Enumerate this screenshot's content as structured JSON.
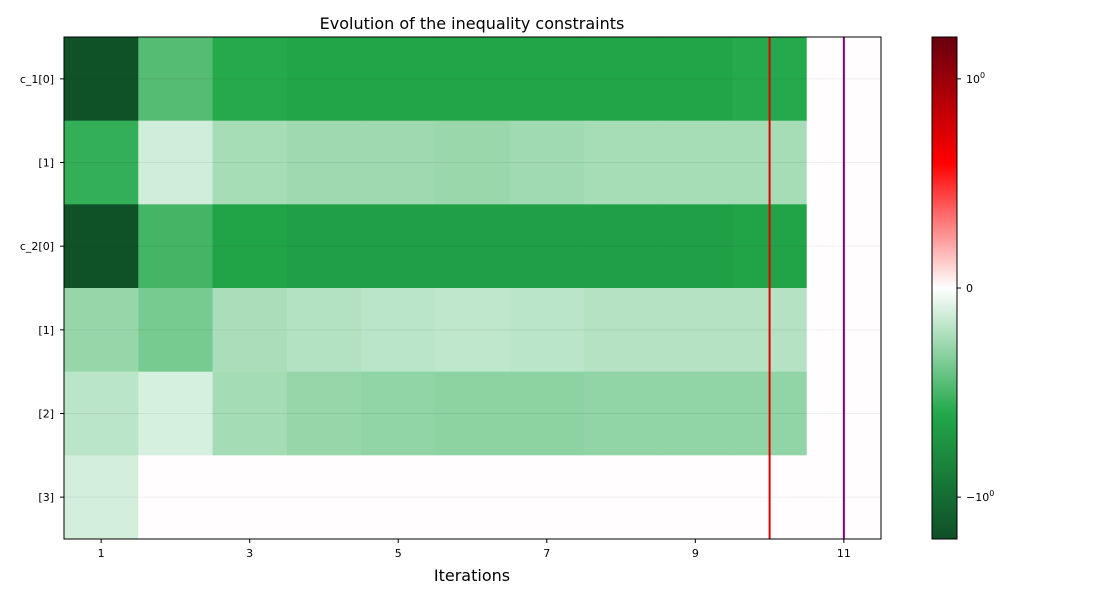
{
  "chart_data": {
    "type": "heatmap",
    "title": "Evolution of the inequality constraints",
    "xlabel": "Iterations",
    "ylabel": "",
    "x": [
      1,
      2,
      3,
      4,
      5,
      6,
      7,
      8,
      9,
      10,
      11
    ],
    "x_tick_labels": [
      "1",
      "3",
      "5",
      "7",
      "9",
      "11"
    ],
    "x_tick_values": [
      1,
      3,
      5,
      7,
      9,
      11
    ],
    "rows": [
      "c_1[0]",
      "[1]",
      "c_2[0]",
      "[1]",
      "[2]",
      "[3]"
    ],
    "values": [
      [
        -1.6,
        -0.72,
        -0.95,
        -0.98,
        -0.98,
        -0.98,
        -0.98,
        -0.98,
        -0.98,
        -0.95,
        0
      ],
      [
        -0.88,
        -0.12,
        -0.32,
        -0.36,
        -0.36,
        -0.38,
        -0.35,
        -0.32,
        -0.32,
        -0.32,
        0
      ],
      [
        -1.6,
        -0.8,
        -1.0,
        -1.03,
        -1.03,
        -1.03,
        -1.03,
        -1.03,
        -1.03,
        -1.0,
        0
      ],
      [
        -0.4,
        -0.55,
        -0.3,
        -0.26,
        -0.22,
        -0.2,
        -0.22,
        -0.25,
        -0.25,
        -0.25,
        0
      ],
      [
        -0.22,
        -0.09,
        -0.33,
        -0.4,
        -0.42,
        -0.44,
        -0.44,
        -0.42,
        -0.42,
        -0.42,
        0
      ],
      [
        -0.1,
        0,
        0,
        0,
        0,
        0,
        0,
        0,
        0,
        0,
        0
      ]
    ],
    "vertical_lines": [
      {
        "x": 10,
        "color": "#e00000"
      },
      {
        "x": 11,
        "color": "#800080"
      }
    ],
    "colorbar": {
      "colormap": "green-white-red (symlog)",
      "tick_labels": [
        "10^0",
        "0",
        "−10^0"
      ],
      "min": -1.2,
      "max": 1.2
    },
    "grid": true
  }
}
